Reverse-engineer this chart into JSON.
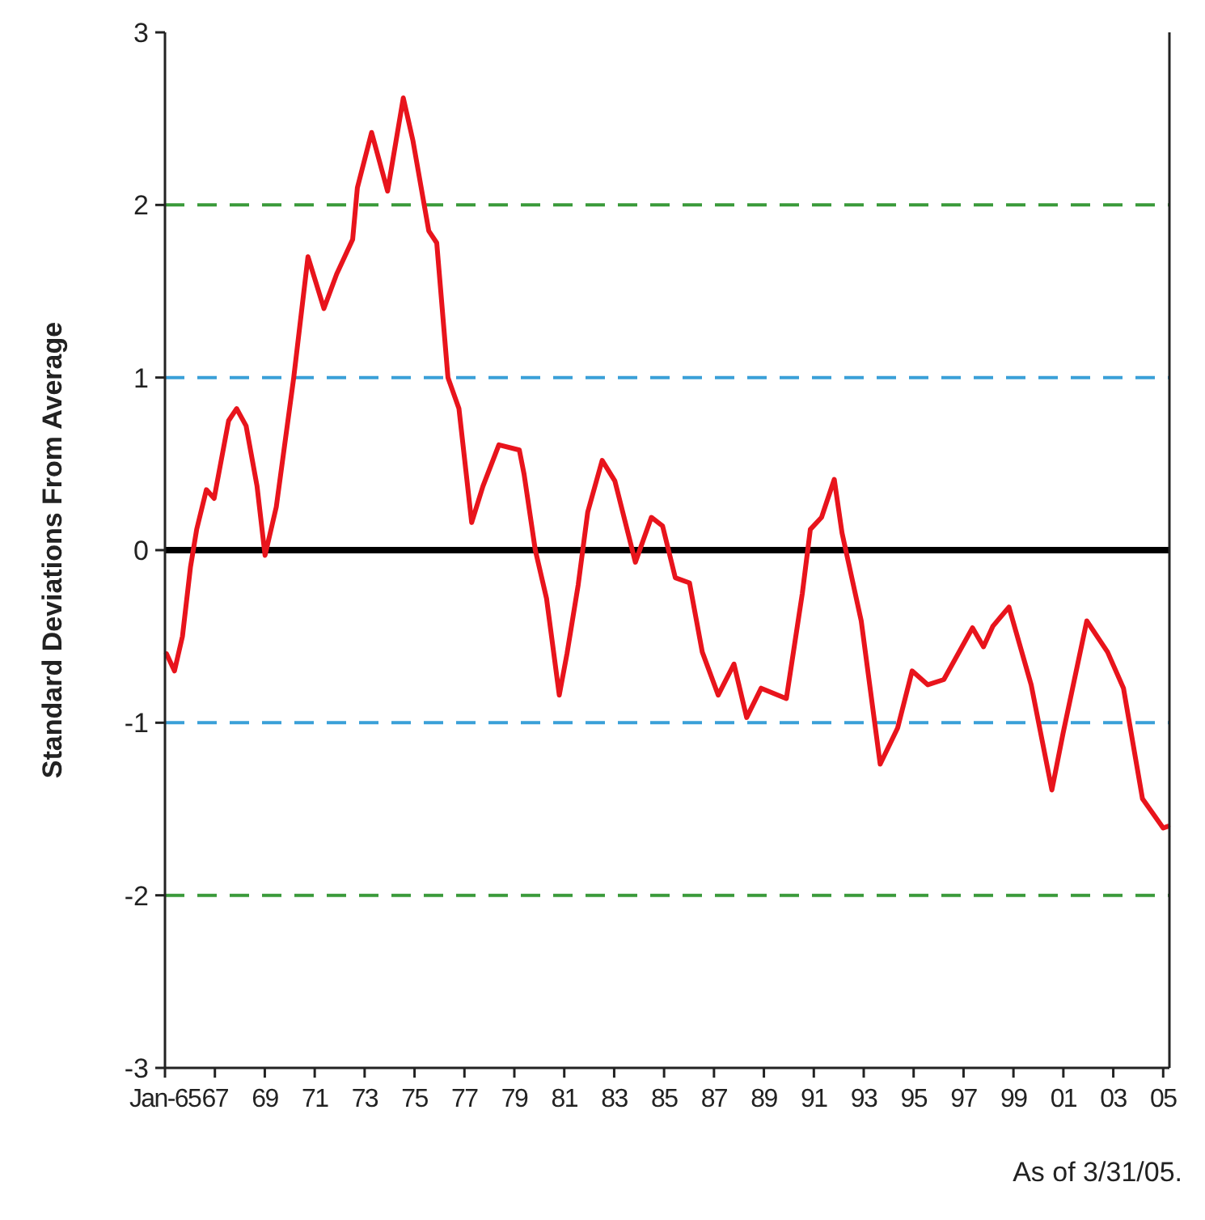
{
  "chart_data": {
    "type": "line",
    "ylabel": "Standard Deviations From Average",
    "annotations": [
      "As of 3/31/05."
    ],
    "xlim": [
      1965,
      2005.25
    ],
    "ylim": [
      -3,
      3
    ],
    "yticks": [
      -3,
      -2,
      -1,
      0,
      1,
      2,
      3
    ],
    "xticks": [
      {
        "value": 1965,
        "label": "Jan-65"
      },
      {
        "value": 1967,
        "label": "67"
      },
      {
        "value": 1969,
        "label": "69"
      },
      {
        "value": 1971,
        "label": "71"
      },
      {
        "value": 1973,
        "label": "73"
      },
      {
        "value": 1975,
        "label": "75"
      },
      {
        "value": 1977,
        "label": "77"
      },
      {
        "value": 1979,
        "label": "79"
      },
      {
        "value": 1981,
        "label": "81"
      },
      {
        "value": 1983,
        "label": "83"
      },
      {
        "value": 1985,
        "label": "85"
      },
      {
        "value": 1987,
        "label": "87"
      },
      {
        "value": 1989,
        "label": "89"
      },
      {
        "value": 1991,
        "label": "91"
      },
      {
        "value": 1993,
        "label": "93"
      },
      {
        "value": 1995,
        "label": "95"
      },
      {
        "value": 1997,
        "label": "97"
      },
      {
        "value": 1999,
        "label": "99"
      },
      {
        "value": 2001,
        "label": "01"
      },
      {
        "value": 2003,
        "label": "03"
      },
      {
        "value": 2005,
        "label": "05"
      }
    ],
    "grid": false,
    "marker": "none",
    "line_style": "solid",
    "ref_lines": [
      {
        "axis": "y",
        "value": 2,
        "color": "#3a9a3a",
        "line_style": "dashed"
      },
      {
        "axis": "y",
        "value": 1,
        "color": "#3aa0d8",
        "line_style": "dashed"
      },
      {
        "axis": "y",
        "value": 0,
        "color": "#000000",
        "line_style": "solid"
      },
      {
        "axis": "y",
        "value": -1,
        "color": "#3aa0d8",
        "line_style": "dashed"
      },
      {
        "axis": "y",
        "value": -2,
        "color": "#3a9a3a",
        "line_style": "dashed"
      }
    ],
    "series": [
      {
        "color": "#e8141c",
        "x": [
          1965.06,
          1965.38,
          1965.7,
          1966.02,
          1966.27,
          1966.66,
          1966.97,
          1967.55,
          1967.87,
          1968.25,
          1968.69,
          1969.01,
          1969.46,
          1970.16,
          1970.73,
          1971.37,
          1971.88,
          1972.52,
          1972.71,
          1973.28,
          1973.92,
          1974.55,
          1974.94,
          1975.57,
          1975.89,
          1976.34,
          1976.78,
          1977.29,
          1977.74,
          1978.38,
          1979.2,
          1979.39,
          1979.84,
          1980.29,
          1980.8,
          1981.11,
          1981.56,
          1981.94,
          1982.52,
          1983.03,
          1983.85,
          1984.49,
          1984.94,
          1985.45,
          1986.02,
          1986.53,
          1987.17,
          1987.8,
          1988.31,
          1988.89,
          1989.9,
          1990.54,
          1990.86,
          1991.31,
          1991.82,
          1992.13,
          1992.9,
          1993.66,
          1994.36,
          1994.94,
          1995.57,
          1996.21,
          1997.36,
          1997.8,
          1998.18,
          1998.82,
          1999.71,
          2000.54,
          2000.99,
          2001.94,
          2002.77,
          2003.41,
          2004.17,
          2005.0,
          2005.19
        ],
        "values": [
          -0.6,
          -0.7,
          -0.5,
          -0.1,
          0.12,
          0.35,
          0.3,
          0.75,
          0.82,
          0.72,
          0.37,
          -0.03,
          0.25,
          1.0,
          1.7,
          1.4,
          1.6,
          1.8,
          2.1,
          2.42,
          2.08,
          2.62,
          2.37,
          1.85,
          1.78,
          1.0,
          0.82,
          0.16,
          0.37,
          0.61,
          0.58,
          0.44,
          0.0,
          -0.28,
          -0.84,
          -0.6,
          -0.2,
          0.22,
          0.52,
          0.4,
          -0.07,
          0.19,
          0.14,
          -0.16,
          -0.19,
          -0.59,
          -0.84,
          -0.66,
          -0.97,
          -0.8,
          -0.86,
          -0.25,
          0.12,
          0.19,
          0.41,
          0.1,
          -0.41,
          -1.24,
          -1.03,
          -0.7,
          -0.78,
          -0.75,
          -0.45,
          -0.56,
          -0.44,
          -0.33,
          -0.78,
          -1.39,
          -1.06,
          -0.41,
          -0.59,
          -0.8,
          -1.44,
          -1.61,
          -1.6
        ]
      }
    ]
  }
}
